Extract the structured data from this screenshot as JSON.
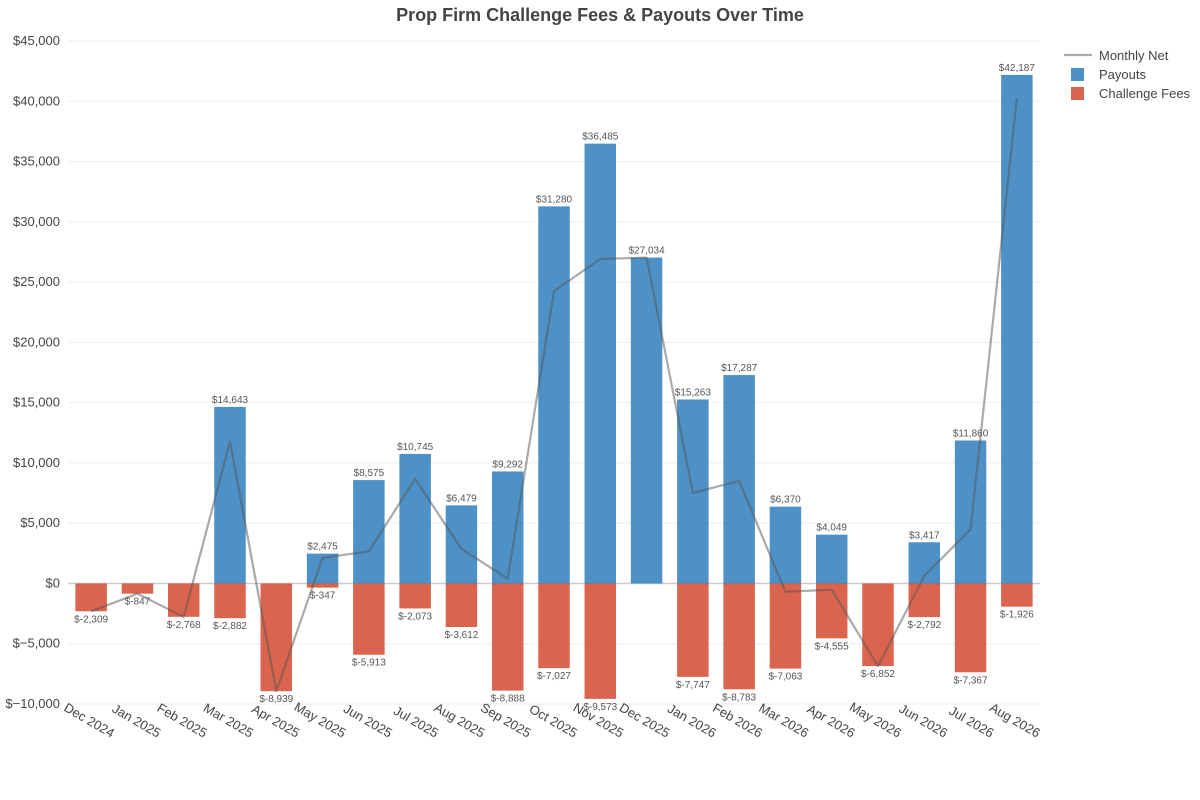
{
  "chart_data": {
    "type": "bar",
    "title": "Prop Firm Challenge Fees & Payouts Over Time",
    "xlabel": "",
    "ylabel": "",
    "ylim": [
      -10000,
      45000
    ],
    "yticks": [
      -10000,
      -5000,
      0,
      5000,
      10000,
      15000,
      20000,
      25000,
      30000,
      35000,
      40000,
      45000
    ],
    "ytick_labels": [
      "$−10,000",
      "$−5,000",
      "$0",
      "$5,000",
      "$10,000",
      "$15,000",
      "$20,000",
      "$25,000",
      "$30,000",
      "$35,000",
      "$40,000",
      "$45,000"
    ],
    "grid": true,
    "legend_position": "top-right",
    "categories": [
      "Dec 2024",
      "Jan 2025",
      "Feb 2025",
      "Mar 2025",
      "Apr 2025",
      "May 2025",
      "Jun 2025",
      "Jul 2025",
      "Aug 2025",
      "Sep 2025",
      "Oct 2025",
      "Nov 2025",
      "Dec 2025",
      "Jan 2026",
      "Feb 2026",
      "Mar 2026",
      "Apr 2026",
      "May 2026",
      "Jun 2026",
      "Jul 2026",
      "Aug 2026"
    ],
    "series": [
      {
        "name": "Payouts",
        "kind": "bar",
        "color": "#2e7ebc",
        "values": [
          0,
          0,
          0,
          14643,
          0,
          2475,
          8575,
          10745,
          6479,
          9292,
          31280,
          36485,
          27034,
          15263,
          17287,
          6370,
          4049,
          0,
          3417,
          11860,
          42187
        ],
        "labels": [
          "",
          "",
          "",
          "$14,643",
          "",
          "$2,475",
          "$8,575",
          "$10,745",
          "$6,479",
          "$9,292",
          "$31,280",
          "$36,485",
          "$27,034",
          "$15,263",
          "$17,287",
          "$6,370",
          "$4,049",
          "",
          "$3,417",
          "$11,860",
          "$42,187"
        ]
      },
      {
        "name": "Challenge Fees",
        "kind": "bar",
        "color": "#d5492f",
        "values": [
          -2309,
          -847,
          -2768,
          -2882,
          -8939,
          -347,
          -5913,
          -2073,
          -3612,
          -8888,
          -7027,
          -9573,
          0,
          -7747,
          -8783,
          -7063,
          -4555,
          -6852,
          -2792,
          -7367,
          -1926
        ],
        "labels": [
          "$-2,309",
          "$-847",
          "$-2,768",
          "$-2,882",
          "$-8,939",
          "$-347",
          "$-5,913",
          "$-2,073",
          "$-3,612",
          "$-8,888",
          "$-7,027",
          "$-9,573",
          "",
          "$-7,747",
          "$-8,783",
          "$-7,063",
          "$-4,555",
          "$-6,852",
          "$-2,792",
          "$-7,367",
          "$-1,926"
        ]
      },
      {
        "name": "Monthly Net",
        "kind": "line",
        "color": "#555555",
        "values": [
          -2309,
          -847,
          -2768,
          11761,
          -8939,
          2128,
          2662,
          8672,
          2867,
          404,
          24253,
          26912,
          27034,
          7516,
          8504,
          -693,
          -506,
          -6852,
          625,
          4493,
          40261
        ]
      }
    ]
  }
}
